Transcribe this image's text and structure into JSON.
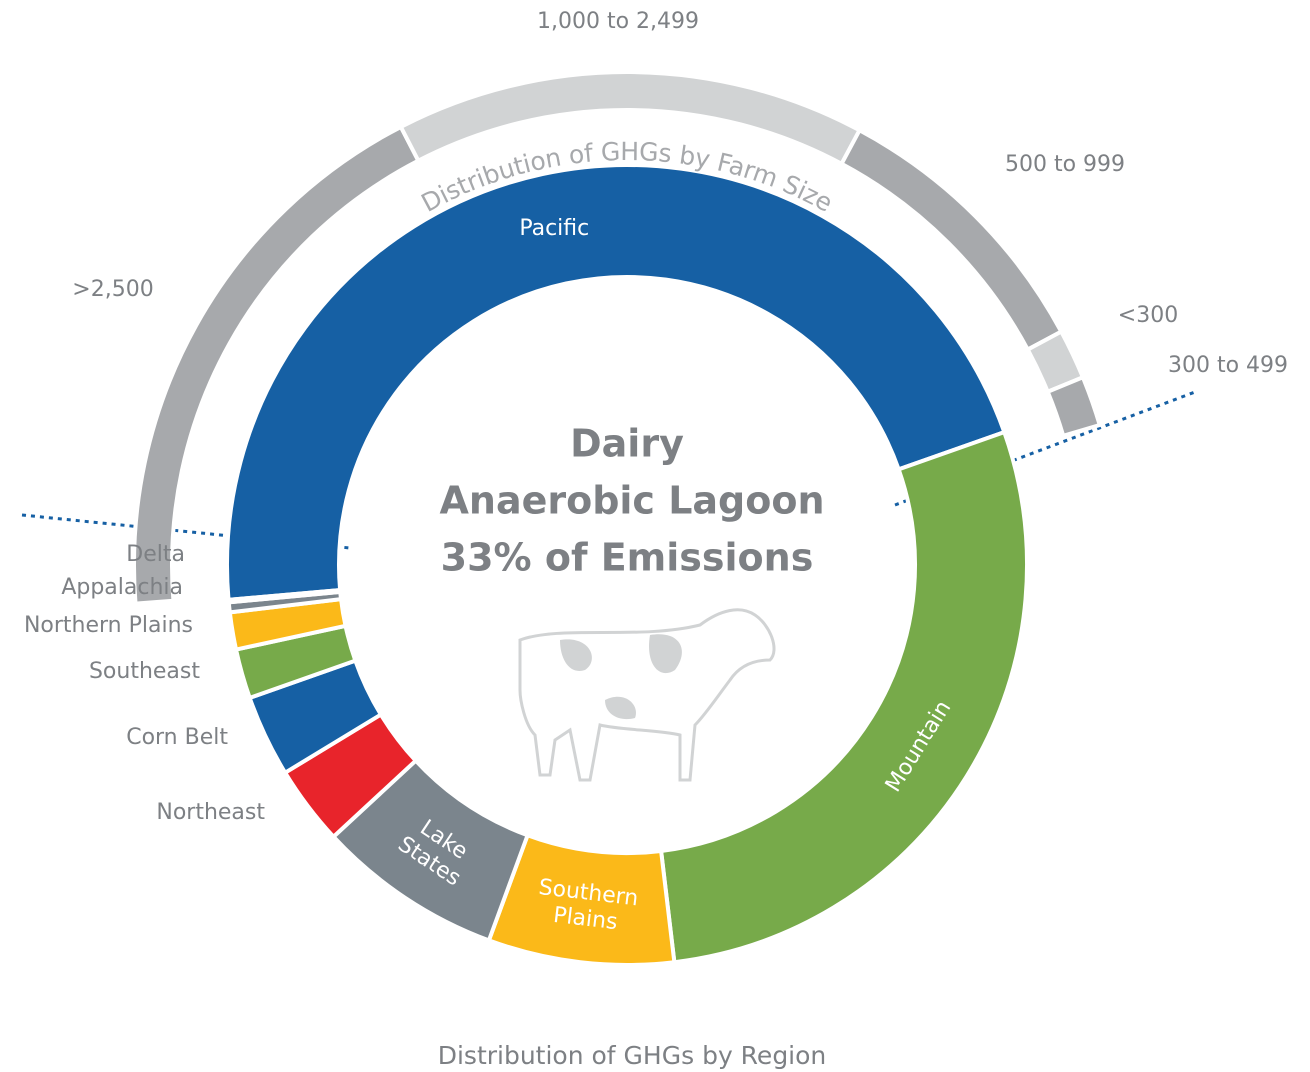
{
  "chart_data": [
    {
      "type": "donut",
      "title": "Distribution of GHGs by Region",
      "annotations": [
        "Dairy",
        "Anaerobic Lagoon",
        "33% of Emissions"
      ],
      "categories": [
        "Pacific",
        "Mountain",
        "Southern Plains",
        "Lake States",
        "Northeast",
        "Corn Belt",
        "Southeast",
        "Northern Plains",
        "Appalachia",
        "Delta"
      ],
      "values": [
        46,
        28.5,
        7.5,
        7.5,
        3.2,
        3.3,
        2,
        1.5,
        0.4,
        0.1
      ],
      "colors": [
        "#1660a4",
        "#77aa4a",
        "#fbb919",
        "#7b858d",
        "#e8242b",
        "#1660a4",
        "#77aa4a",
        "#fbb919",
        "#7b858d",
        "#e8242b"
      ]
    },
    {
      "type": "arc",
      "title": "Distribution of GHGs by Farm Size",
      "categories": [
        ">2,500",
        "1,000 to 2,499",
        "500 to 999",
        "<300",
        "300 to 499"
      ],
      "values": [
        40,
        33,
        20,
        3.5,
        3.5
      ],
      "colors": [
        "#a7a9ac",
        "#d1d3d4",
        "#a7a9ac",
        "#d1d3d4",
        "#a7a9ac"
      ]
    }
  ]
}
